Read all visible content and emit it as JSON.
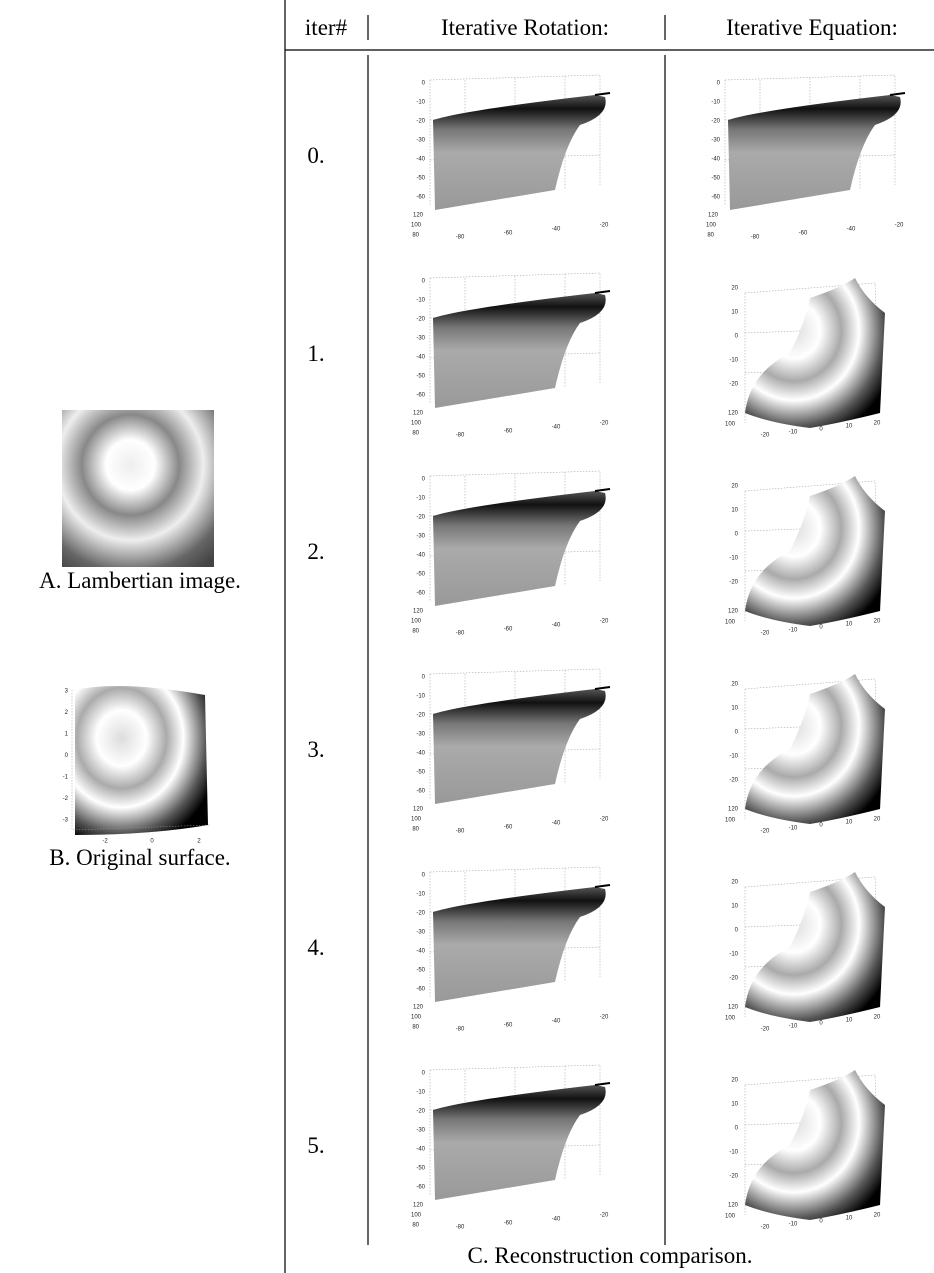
{
  "header": {
    "iter": "iter#",
    "rotation": "Iterative Rotation:",
    "equation": "Iterative Equation:"
  },
  "rows": [
    "0.",
    "1.",
    "2.",
    "3.",
    "4.",
    "5."
  ],
  "captions": {
    "a": "A. Lambertian image.",
    "b": "B. Original surface.",
    "c": "C. Reconstruction comparison."
  },
  "plots": {
    "rotation": {
      "yticks": [
        0,
        -10,
        -20,
        -30,
        -40,
        -50,
        -60
      ],
      "zticks": [
        120,
        100,
        80
      ],
      "xticks": [
        -80,
        -60,
        -40,
        -20
      ]
    },
    "equation": {
      "yticks": [
        20,
        10,
        0,
        -10,
        -20
      ],
      "zticks": [
        120,
        100
      ],
      "xticks": [
        -20,
        -10,
        0,
        10,
        20
      ]
    },
    "original": {
      "yticks": [
        3,
        2,
        1,
        0,
        -1,
        -2,
        -3
      ],
      "xticks": [
        -2,
        0,
        2
      ]
    }
  }
}
